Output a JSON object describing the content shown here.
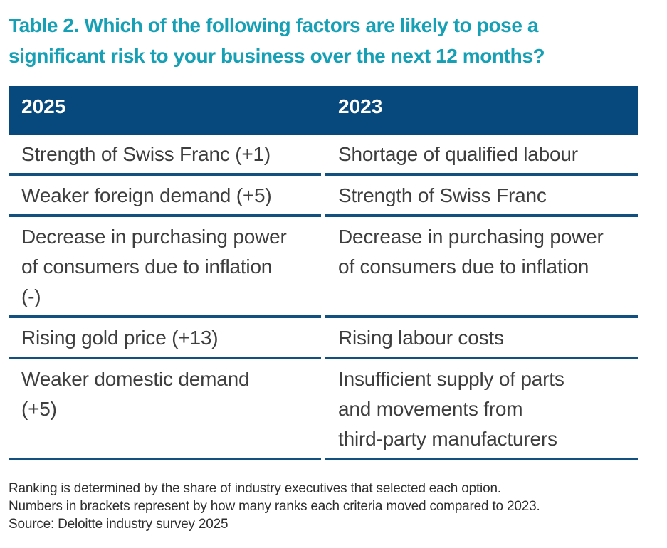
{
  "title": "Table 2. Which of the following factors are likely to pose a\nsignificant risk to your business over the next 12 months?",
  "table": {
    "columns": [
      "2025",
      "2023"
    ],
    "rows": [
      [
        "Strength of Swiss Franc (+1)",
        "Shortage of qualified labour"
      ],
      [
        "Weaker foreign demand (+5)",
        "Strength of Swiss Franc"
      ],
      [
        "Decrease in purchasing power\nof consumers due to inflation\n(-)",
        "Decrease in purchasing power\nof consumers due to inflation"
      ],
      [
        "Rising gold price (+13)",
        "Rising labour costs"
      ],
      [
        "Weaker domestic demand\n(+5)",
        "Insufficient supply of parts\nand movements from\nthird-party manufacturers"
      ]
    ]
  },
  "footnotes": [
    "Ranking is determined by the share of industry executives that selected each option.",
    "Numbers in brackets represent by how many ranks each criteria moved compared to 2023.",
    "Source: Deloitte industry survey 2025"
  ],
  "colors": {
    "title_teal": "#16A0B5",
    "header_blue": "#07497C",
    "row_border_blue": "#11507F",
    "body_text": "#3E3E3E",
    "footnote_text": "#2E2E2E"
  }
}
